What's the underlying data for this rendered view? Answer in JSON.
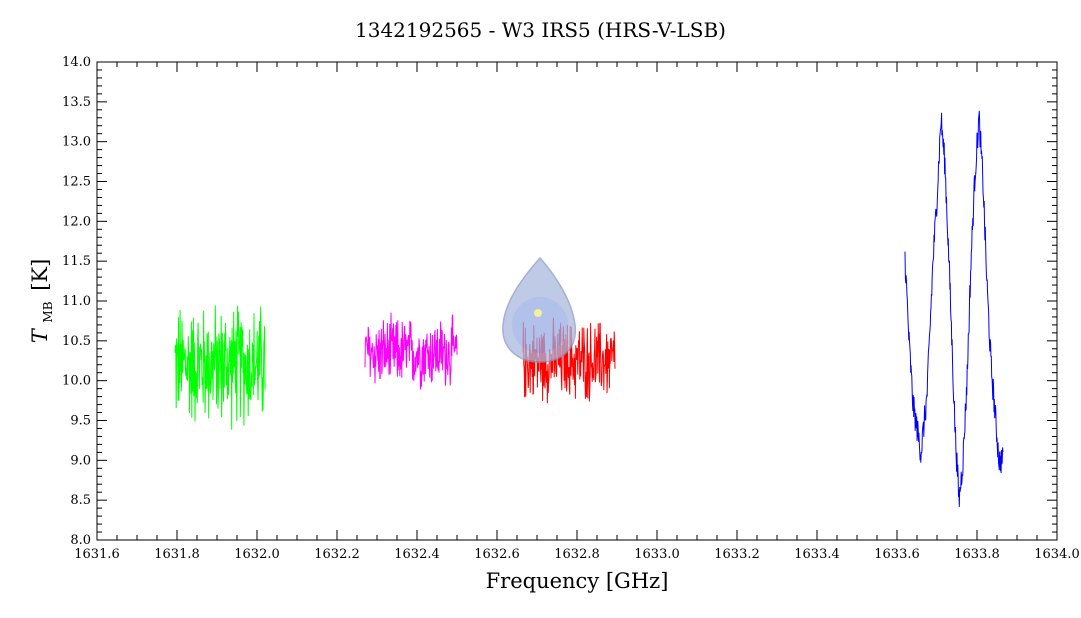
{
  "chart_data": {
    "type": "line",
    "title": "1342192565 - W3 IRS5 (HRS-V-LSB)",
    "xlabel": "Frequency [GHz]",
    "ylabel_main": "T",
    "ylabel_sub": "MB",
    "ylabel_unit": "[K]",
    "xlim": [
      1631.6,
      1634.0
    ],
    "ylim": [
      8.0,
      14.0
    ],
    "x_ticks": [
      "1631.6",
      "1631.8",
      "1632.0",
      "1632.2",
      "1632.4",
      "1632.6",
      "1632.8",
      "1633.0",
      "1633.2",
      "1633.4",
      "1633.6",
      "1633.8",
      "1634.0"
    ],
    "y_ticks": [
      "8.0",
      "8.5",
      "9.0",
      "9.5",
      "10.0",
      "10.5",
      "11.0",
      "11.5",
      "12.0",
      "12.5",
      "13.0",
      "13.5",
      "14.0"
    ],
    "grid": false,
    "series": [
      {
        "color": "#00ff00",
        "x_start": 1631.795,
        "x_end": 1632.02,
        "noise_center": 10.2,
        "amplitude": 0.6,
        "min": 9.2,
        "max": 11.63
      },
      {
        "color": "#ff00ff",
        "x_start": 1632.27,
        "x_end": 1632.5,
        "noise_center": 10.35,
        "amplitude": 0.35,
        "min": 9.5,
        "max": 11.5
      },
      {
        "color": "#ff0000",
        "x_start": 1632.665,
        "x_end": 1632.895,
        "noise_center": 10.25,
        "amplitude": 0.4,
        "min": 9.6,
        "max": 11.4
      },
      {
        "color": "#0000ff",
        "x_start": 1633.62,
        "x_end": 1633.865,
        "profile": [
          [
            1633.62,
            11.55
          ],
          [
            1633.63,
            10.5
          ],
          [
            1633.64,
            9.7
          ],
          [
            1633.66,
            9.1
          ],
          [
            1633.675,
            9.8
          ],
          [
            1633.69,
            11.5
          ],
          [
            1633.7,
            12.3
          ],
          [
            1633.71,
            13.3
          ],
          [
            1633.72,
            12.7
          ],
          [
            1633.73,
            11.5
          ],
          [
            1633.745,
            9.4
          ],
          [
            1633.755,
            8.5
          ],
          [
            1633.765,
            9.0
          ],
          [
            1633.775,
            10.0
          ],
          [
            1633.785,
            11.5
          ],
          [
            1633.795,
            12.6
          ],
          [
            1633.805,
            13.3
          ],
          [
            1633.815,
            12.5
          ],
          [
            1633.825,
            11.2
          ],
          [
            1633.835,
            10.2
          ],
          [
            1633.845,
            9.6
          ],
          [
            1633.855,
            9.0
          ],
          [
            1633.865,
            9.0
          ]
        ]
      }
    ]
  }
}
